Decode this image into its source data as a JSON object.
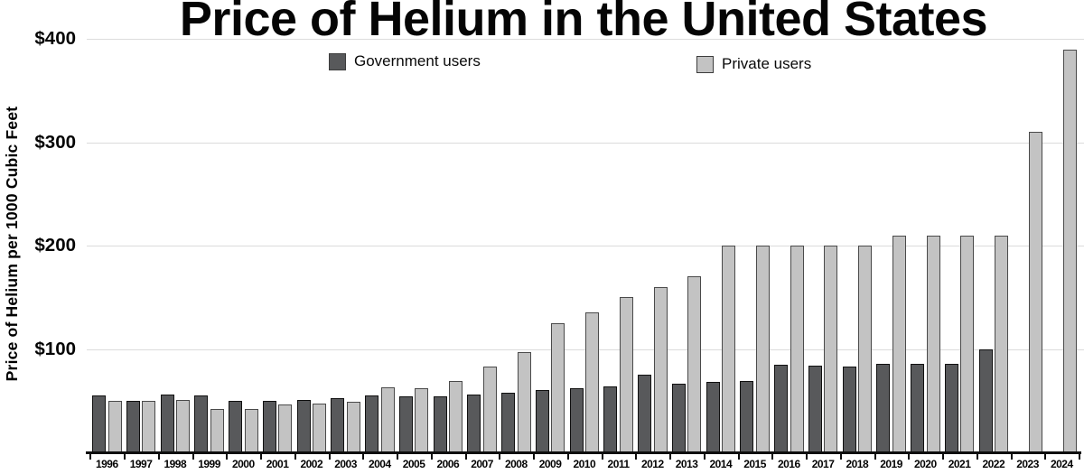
{
  "title": "Price of Helium in the United States",
  "chart_data": {
    "type": "bar",
    "title": "Price of Helium in the United States",
    "xlabel": "",
    "ylabel": "Price of Helium per 1000 Cubic Feet",
    "ylim": [
      0,
      400
    ],
    "yticks": [
      100,
      200,
      300,
      400
    ],
    "ytick_labels": [
      "$100",
      "$200",
      "$300",
      "$400"
    ],
    "grid": "horizontal-light",
    "legend_position": "top-center",
    "categories": [
      "1996",
      "1997",
      "1998",
      "1999",
      "2000",
      "2001",
      "2002",
      "2003",
      "2004",
      "2005",
      "2006",
      "2007",
      "2008",
      "2009",
      "2010",
      "2011",
      "2012",
      "2013",
      "2014",
      "2015",
      "2016",
      "2017",
      "2018",
      "2019",
      "2020",
      "2021",
      "2022",
      "2023",
      "2024"
    ],
    "series": [
      {
        "name": "Government users",
        "color": "#58595b",
        "values": [
          55,
          50,
          56,
          55,
          50,
          50,
          51,
          52,
          55,
          54,
          54,
          56,
          58,
          60,
          62,
          64,
          75,
          66,
          68,
          69,
          85,
          84,
          83,
          86,
          86,
          86,
          100,
          null,
          null
        ]
      },
      {
        "name": "Private users",
        "color": "#c3c3c3",
        "values": [
          50,
          50,
          51,
          42,
          42,
          46,
          47,
          49,
          63,
          62,
          69,
          83,
          97,
          125,
          135,
          150,
          160,
          170,
          200,
          200,
          200,
          200,
          200,
          210,
          210,
          210,
          210,
          310,
          390
        ]
      }
    ],
    "colors": {
      "gridline": "#dcdcdc",
      "axis": "#0d0d0d",
      "text": "#000000"
    }
  }
}
